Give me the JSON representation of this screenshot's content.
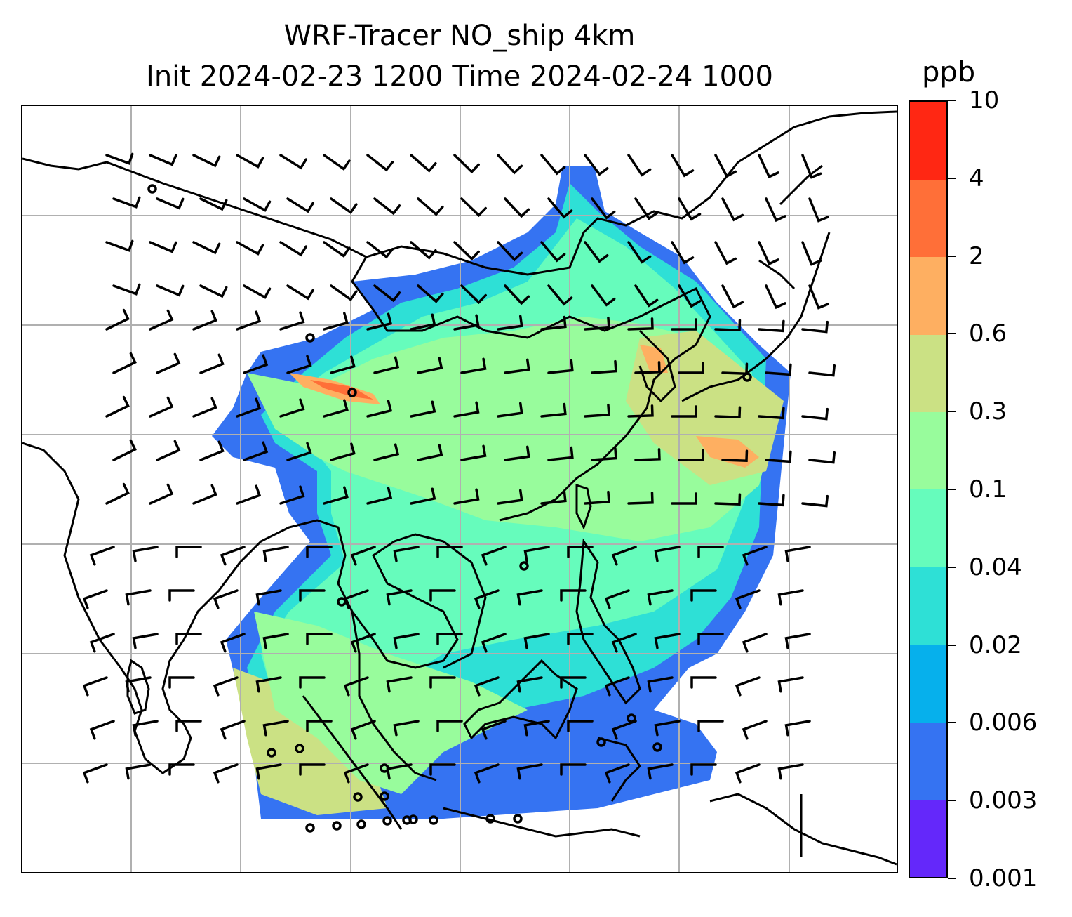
{
  "title": {
    "line1": "WRF-Tracer NO_ship 4km",
    "line2": "Init 2024-02-23 1200 Time 2024-02-24 1000"
  },
  "colorbar": {
    "unit": "ppb",
    "levels": [
      "0.001",
      "0.003",
      "0.006",
      "0.02",
      "0.04",
      "0.1",
      "0.3",
      "0.6",
      "2",
      "4",
      "10"
    ],
    "colors": [
      "#6428fa",
      "#3573f2",
      "#06b0ec",
      "#2ee0d6",
      "#66fcbc",
      "#98fc9c",
      "#cbe184",
      "#feaf61",
      "#ff6f38",
      "#ff2713"
    ]
  },
  "map": {
    "gridlines": true,
    "wind_barbs": true,
    "coastlines": true
  }
}
